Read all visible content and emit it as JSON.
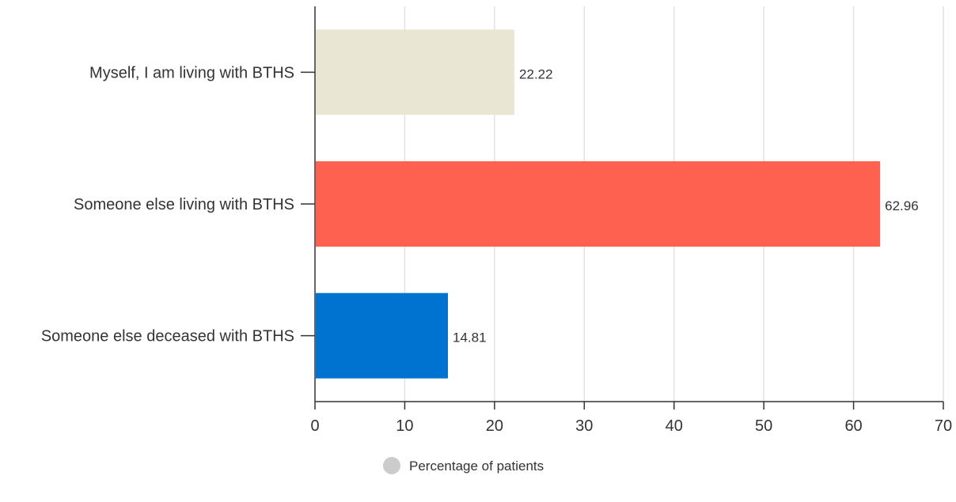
{
  "chart_data": {
    "type": "bar",
    "orientation": "horizontal",
    "categories": [
      "Myself, I am living with BTHS",
      "Someone else living with BTHS",
      "Someone else deceased with BTHS"
    ],
    "series": [
      {
        "name": "Percentage of patients",
        "values": [
          22.22,
          62.96,
          14.81
        ],
        "value_labels": [
          "22.22",
          "62.96",
          "14.81"
        ]
      }
    ],
    "bar_colors": [
      "#e9e7d4",
      "#ff6150",
      "#0072d0"
    ],
    "legend_marker_color": "#cccccc",
    "xlim": [
      0,
      70
    ],
    "xticks": [
      0,
      10,
      20,
      30,
      40,
      50,
      60,
      70
    ],
    "xtick_labels": [
      "0",
      "10",
      "20",
      "30",
      "40",
      "50",
      "60",
      "70"
    ],
    "grid": true,
    "legend": "bottom-center",
    "title": "",
    "xlabel": "",
    "ylabel": ""
  }
}
